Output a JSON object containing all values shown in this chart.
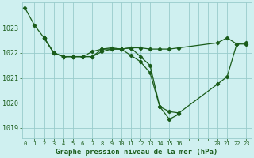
{
  "background_color": "#cff0f0",
  "grid_color": "#99cccc",
  "line_color": "#1a5c1a",
  "xtick_labels": [
    "0",
    "1",
    "2",
    "3",
    "4",
    "5",
    "6",
    "7",
    "8",
    "9",
    "10",
    "11",
    "12",
    "13",
    "14",
    "15",
    "16",
    "",
    "",
    "",
    "20",
    "21",
    "22",
    "23"
  ],
  "xtick_positions": [
    0,
    1,
    2,
    3,
    4,
    5,
    6,
    7,
    8,
    9,
    10,
    11,
    12,
    13,
    14,
    15,
    16,
    17,
    18,
    19,
    20,
    21,
    22,
    23
  ],
  "xlim": [
    -0.3,
    23.5
  ],
  "yticks": [
    1019,
    1020,
    1021,
    1022,
    1023
  ],
  "ylim": [
    1018.6,
    1024.0
  ],
  "series1_x": [
    0,
    1,
    2,
    3,
    4,
    5,
    6,
    7,
    8,
    9,
    10,
    11,
    12,
    13,
    14,
    15,
    16,
    20,
    21,
    22,
    23
  ],
  "series1_xi": [
    0,
    1,
    2,
    3,
    4,
    5,
    6,
    7,
    8,
    9,
    10,
    11,
    12,
    13,
    14,
    15,
    16,
    20,
    21,
    22,
    23
  ],
  "series1_y": [
    1023.8,
    1023.1,
    1022.6,
    1022.0,
    1021.85,
    1021.85,
    1021.85,
    1022.05,
    1022.15,
    1022.15,
    1022.15,
    1022.2,
    1022.2,
    1022.15,
    1022.15,
    1022.15,
    1022.2,
    1022.4,
    1022.6,
    1022.35,
    1022.35
  ],
  "series2_x": [
    2,
    3,
    4,
    5,
    6,
    7,
    8,
    9,
    10,
    11,
    12,
    13,
    14,
    15,
    16,
    20,
    21,
    22,
    23
  ],
  "series2_xi": [
    2,
    3,
    4,
    5,
    6,
    7,
    8,
    9,
    10,
    11,
    12,
    13,
    14,
    15,
    16,
    20,
    21,
    22,
    23
  ],
  "series2_y": [
    1022.6,
    1022.0,
    1021.85,
    1021.85,
    1021.85,
    1021.85,
    1022.15,
    1022.2,
    1022.15,
    1021.9,
    1021.65,
    1021.2,
    1019.85,
    1019.65,
    1019.6,
    1020.75,
    1021.05,
    1022.35,
    1022.4
  ],
  "series3_x": [
    2,
    3,
    4,
    5,
    6,
    7,
    8,
    9,
    10,
    11,
    12,
    13,
    14,
    15,
    16
  ],
  "series3_xi": [
    2,
    3,
    4,
    5,
    6,
    7,
    8,
    9,
    10,
    11,
    12,
    13,
    14,
    15,
    16
  ],
  "series3_y": [
    1022.6,
    1022.0,
    1021.85,
    1021.85,
    1021.85,
    1021.85,
    1022.05,
    1022.15,
    1022.15,
    1022.2,
    1021.85,
    1021.5,
    1019.85,
    1019.35,
    1019.55
  ],
  "xlabel": "Graphe pression niveau de la mer (hPa)",
  "xlabel_fontsize": 6.5
}
